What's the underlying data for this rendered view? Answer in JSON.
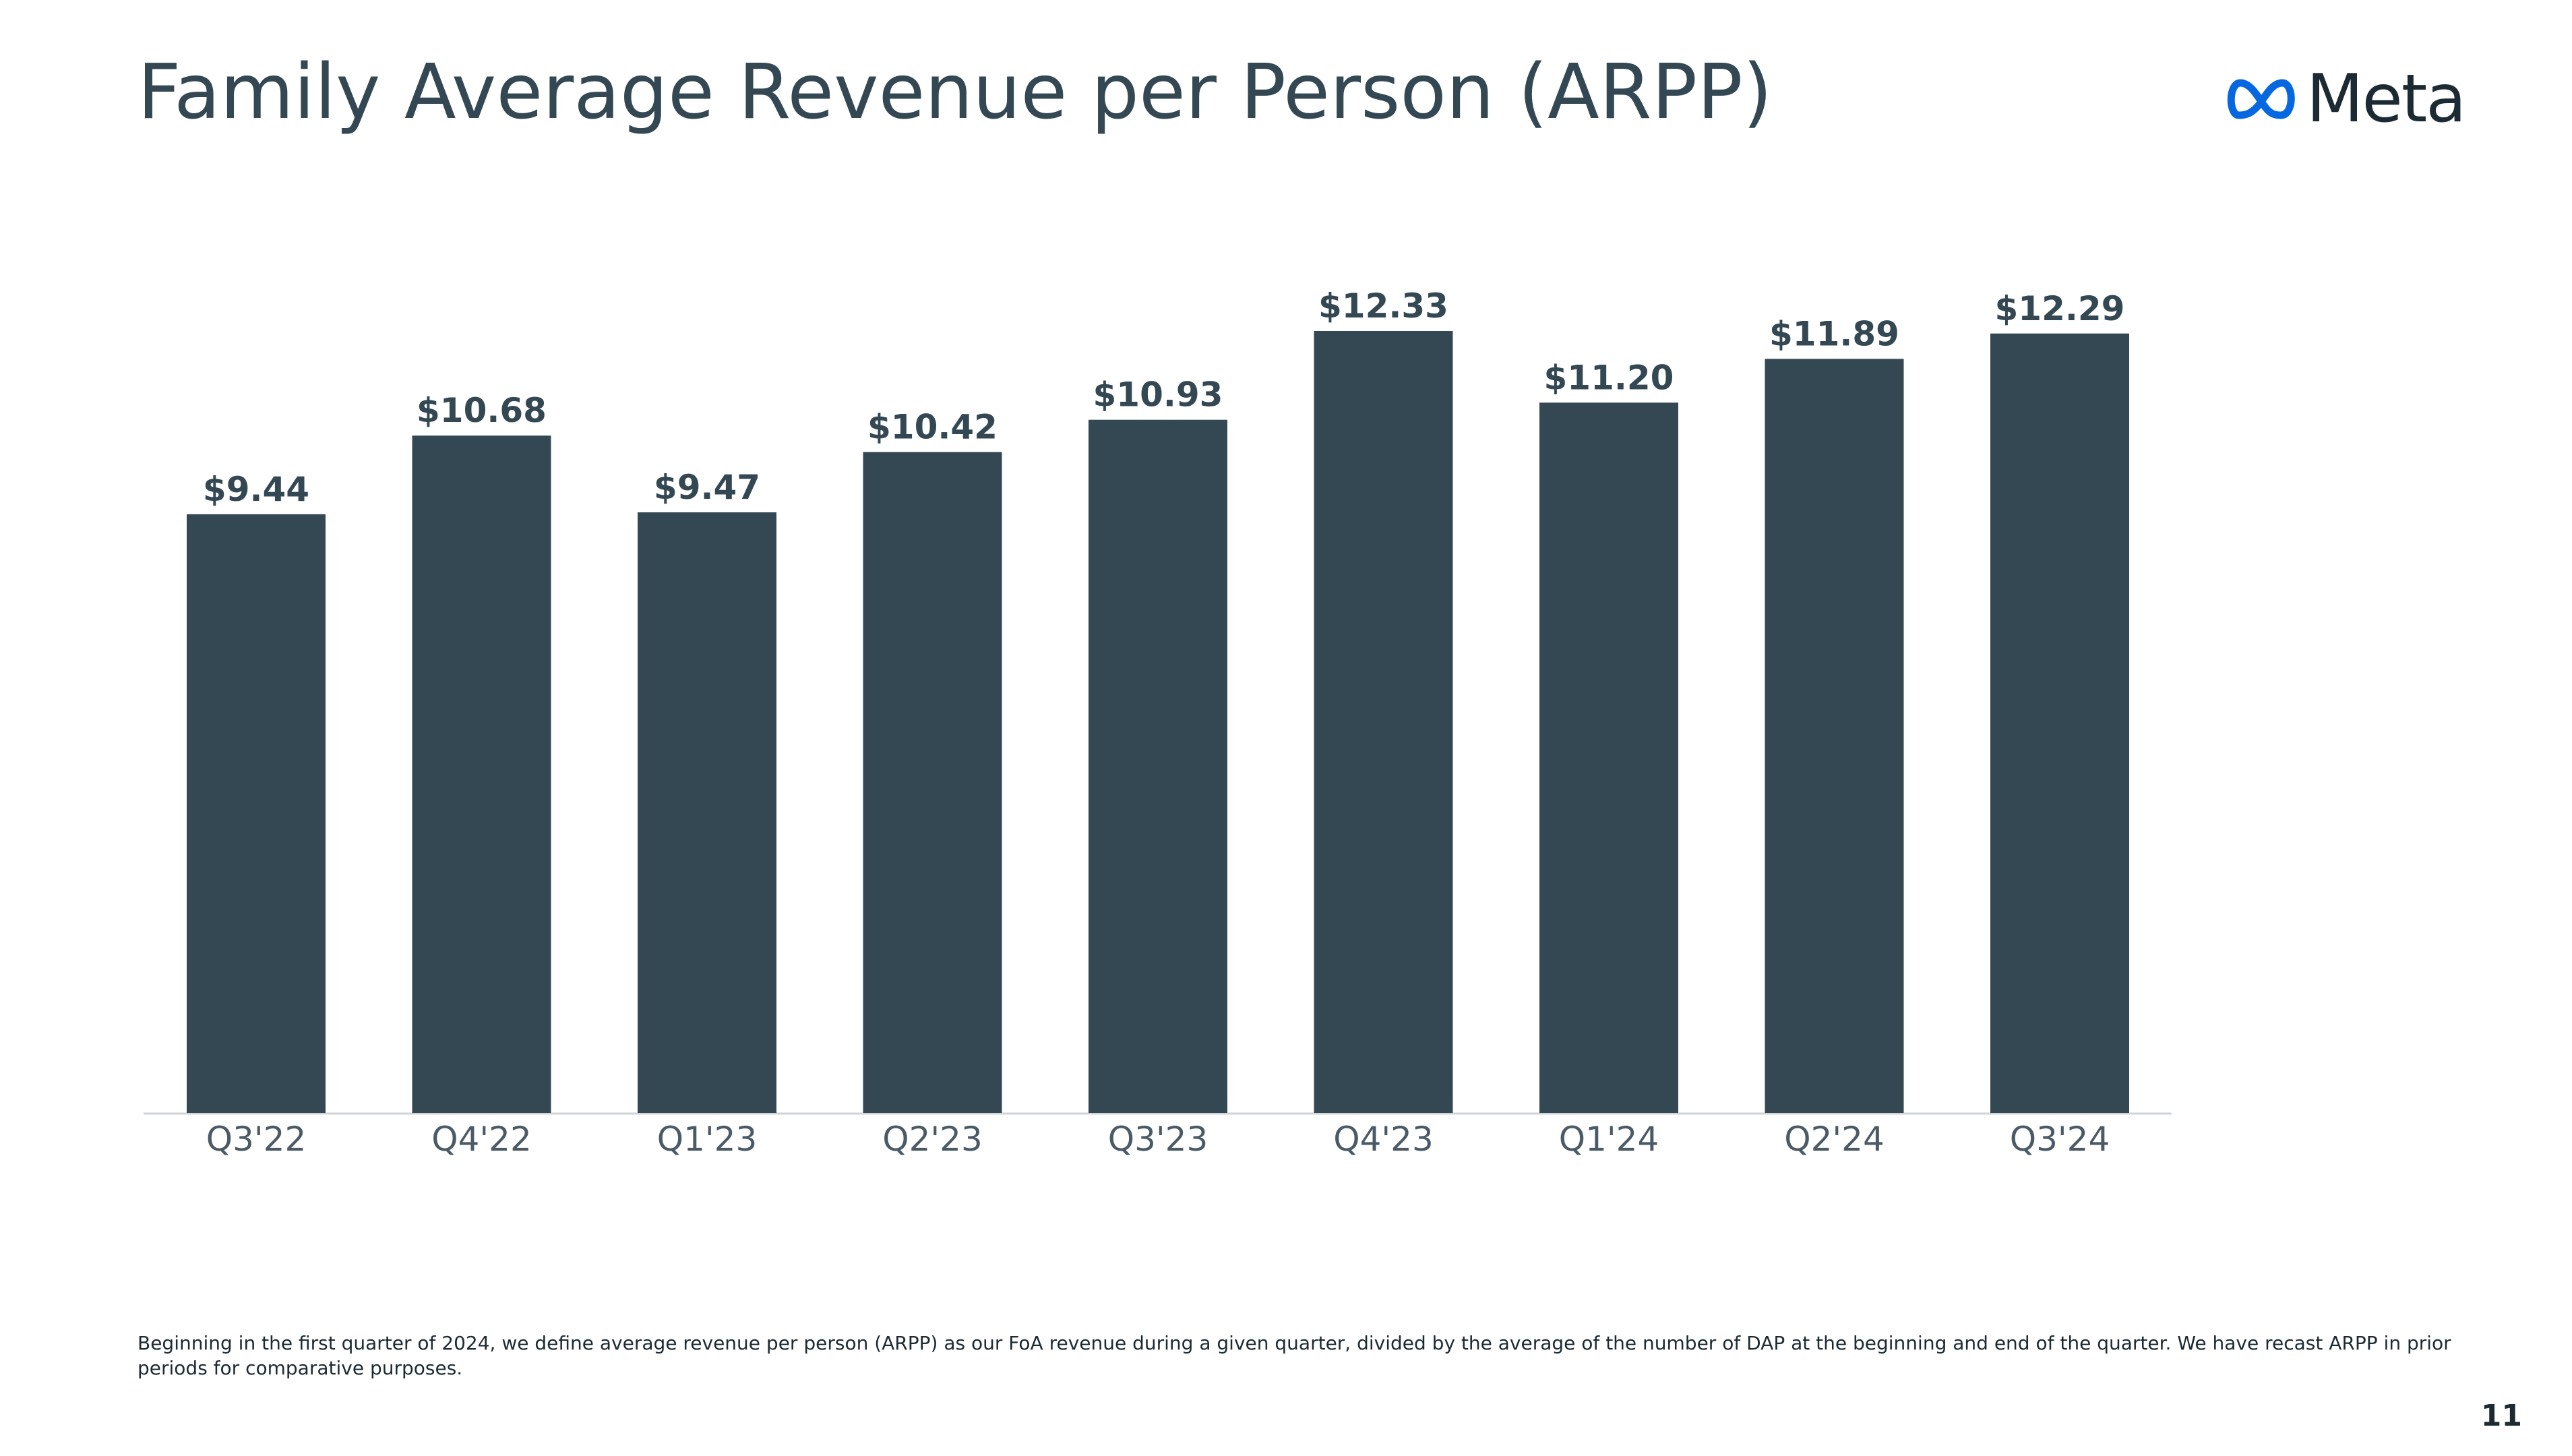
{
  "slide": {
    "title": "Family Average Revenue per Person (ARPP)",
    "logo_text": "Meta",
    "footnote": "Beginning in the first quarter of 2024, we define average revenue per person (ARPP) as our FoA revenue during a given quarter, divided by the average of the number of DAP at the beginning and end of the quarter. We have recast ARPP in prior periods for comparative purposes.",
    "page_number": "11"
  },
  "colors": {
    "bar": "#344854",
    "logo_blue": "#0668E1",
    "axis": "#cfd4d8"
  },
  "chart_data": {
    "type": "bar",
    "title": "",
    "xlabel": "",
    "ylabel": "",
    "grid": false,
    "legend": "none",
    "ylim": [
      0,
      12.33
    ],
    "categories": [
      "Q3'22",
      "Q4'22",
      "Q1'23",
      "Q2'23",
      "Q3'23",
      "Q4'23",
      "Q1'24",
      "Q2'24",
      "Q3'24"
    ],
    "values": [
      9.44,
      10.68,
      9.47,
      10.42,
      10.93,
      12.33,
      11.2,
      11.89,
      12.29
    ],
    "value_labels": [
      "$9.44",
      "$10.68",
      "$9.47",
      "$10.42",
      "$10.93",
      "$12.33",
      "$11.20",
      "$11.89",
      "$12.29"
    ]
  }
}
